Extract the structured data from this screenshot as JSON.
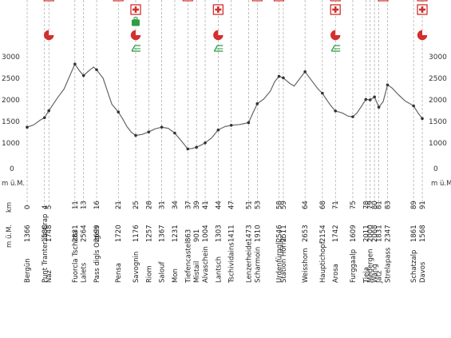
{
  "chart_data": {
    "type": "area",
    "title": "",
    "xlabel": "km",
    "ylabel": "m ü.M.",
    "units": {
      "elevation_left": "m ü.M.",
      "elevation_right": "m ü.M.",
      "km": "km"
    },
    "ylim": [
      0,
      3000
    ],
    "y_ticks": [
      1000,
      1500,
      2000,
      2500,
      3000
    ],
    "y_tick_labels": [
      "1000",
      "1500",
      "2000",
      "2500",
      "3000"
    ],
    "y_zero_label": "0",
    "xlim": [
      0,
      91
    ],
    "grid": false,
    "stops": [
      {
        "km": 0,
        "km_label": "0",
        "elev": 1366,
        "elev_label": "1366",
        "name": "Bergün"
      },
      {
        "km": 4,
        "km_label": "4",
        "elev": 1588,
        "elev_label": "1588",
        "name": "Punt Tranter ils Crap"
      },
      {
        "km": 5,
        "km_label": "5",
        "elev": 1748,
        "elev_label": "1748",
        "name": "Naz"
      },
      {
        "km": 11,
        "km_label": "11",
        "elev": 2831,
        "elev_label": "2831",
        "name": "Fuorcla Tschitta"
      },
      {
        "km": 13,
        "km_label": "13",
        "elev": 2564,
        "elev_label": "2564",
        "name": "Lalets"
      },
      {
        "km": 16,
        "km_label": "16",
        "elev": 2699,
        "elev_label": "2699",
        "name": "Pass digls Orgels"
      },
      {
        "km": 21,
        "km_label": "21",
        "elev": 1720,
        "elev_label": "1720",
        "name": "Pensa"
      },
      {
        "km": 25,
        "km_label": "25",
        "elev": 1176,
        "elev_label": "1176",
        "name": "Savognin"
      },
      {
        "km": 28,
        "km_label": "28",
        "elev": 1257,
        "elev_label": "1257",
        "name": "Riom"
      },
      {
        "km": 31,
        "km_label": "31",
        "elev": 1367,
        "elev_label": "1367",
        "name": "Salouf"
      },
      {
        "km": 34,
        "km_label": "34",
        "elev": 1231,
        "elev_label": "1231",
        "name": "Mon"
      },
      {
        "km": 37,
        "km_label": "37",
        "elev": 863,
        "elev_label": "863",
        "name": "Tiefencastel"
      },
      {
        "km": 39,
        "km_label": "39",
        "elev": 901,
        "elev_label": "901",
        "name": "Mistail"
      },
      {
        "km": 41,
        "km_label": "41",
        "elev": 1004,
        "elev_label": "1004",
        "name": "Alvaschein"
      },
      {
        "km": 44,
        "km_label": "44",
        "elev": 1303,
        "elev_label": "1303",
        "name": "Lantsch"
      },
      {
        "km": 47,
        "km_label": "47",
        "elev": 1411,
        "elev_label": "1411",
        "name": "Tschividains"
      },
      {
        "km": 51,
        "km_label": "51",
        "elev": 1473,
        "elev_label": "1473",
        "name": "Lenzerheide"
      },
      {
        "km": 53,
        "km_label": "53",
        "elev": 1910,
        "elev_label": "1910",
        "name": "Scharmoin"
      },
      {
        "km": 58,
        "km_label": "58",
        "elev": 2546,
        "elev_label": "2546",
        "name": "Urdenfürggli"
      },
      {
        "km": 59,
        "km_label": "59",
        "elev": 2511,
        "elev_label": "2511",
        "name": "Station Hörnli"
      },
      {
        "km": 64,
        "km_label": "64",
        "elev": 2653,
        "elev_label": "2653",
        "name": "Weisshorn"
      },
      {
        "km": 68,
        "km_label": "68",
        "elev": 2154,
        "elev_label": "2154",
        "name": "Hauptichopf"
      },
      {
        "km": 71,
        "km_label": "71",
        "elev": 1742,
        "elev_label": "1742",
        "name": "Arosa"
      },
      {
        "km": 75,
        "km_label": "75",
        "elev": 1609,
        "elev_label": "1609",
        "name": "Furggaalp"
      },
      {
        "km": 78,
        "km_label": "78",
        "elev": 2011,
        "elev_label": "2011",
        "name": "Tieja"
      },
      {
        "km": 79,
        "km_label": "79",
        "elev": 2000,
        "elev_label": "2000",
        "name": "Medergen"
      },
      {
        "km": 80,
        "km_label": "80",
        "elev": 2068,
        "elev_label": "2068",
        "name": "Wang"
      },
      {
        "km": 81,
        "km_label": "81",
        "elev": 1831,
        "elev_label": "1831",
        "name": "Jatz"
      },
      {
        "km": 83,
        "km_label": "83",
        "elev": 2347,
        "elev_label": "2347",
        "name": "Strelapass"
      },
      {
        "km": 89,
        "km_label": "89",
        "elev": 1861,
        "elev_label": "1861",
        "name": "Schatzalp"
      },
      {
        "km": 91,
        "km_label": "91",
        "elev": 1568,
        "elev_label": "1568",
        "name": "Davos"
      }
    ],
    "profile": [
      [
        0,
        1366
      ],
      [
        1.5,
        1420
      ],
      [
        3,
        1530
      ],
      [
        4,
        1588
      ],
      [
        5,
        1748
      ],
      [
        7,
        2050
      ],
      [
        8.5,
        2250
      ],
      [
        10,
        2600
      ],
      [
        11,
        2831
      ],
      [
        12,
        2680
      ],
      [
        13,
        2564
      ],
      [
        14.5,
        2700
      ],
      [
        15.3,
        2760
      ],
      [
        16,
        2699
      ],
      [
        17.5,
        2500
      ],
      [
        18.5,
        2200
      ],
      [
        19.5,
        1900
      ],
      [
        21,
        1720
      ],
      [
        22,
        1560
      ],
      [
        23,
        1380
      ],
      [
        24,
        1250
      ],
      [
        25,
        1176
      ],
      [
        26.5,
        1200
      ],
      [
        28,
        1257
      ],
      [
        29.5,
        1330
      ],
      [
        31,
        1367
      ],
      [
        32.5,
        1340
      ],
      [
        34,
        1231
      ],
      [
        35.5,
        1050
      ],
      [
        37,
        863
      ],
      [
        38,
        875
      ],
      [
        39,
        901
      ],
      [
        40,
        950
      ],
      [
        41,
        1004
      ],
      [
        42.5,
        1120
      ],
      [
        44,
        1303
      ],
      [
        45.5,
        1380
      ],
      [
        47,
        1411
      ],
      [
        49,
        1430
      ],
      [
        51,
        1473
      ],
      [
        52,
        1700
      ],
      [
        53,
        1910
      ],
      [
        54.5,
        2020
      ],
      [
        56,
        2200
      ],
      [
        57,
        2420
      ],
      [
        58,
        2546
      ],
      [
        59,
        2511
      ],
      [
        60.5,
        2380
      ],
      [
        61.5,
        2320
      ],
      [
        63,
        2520
      ],
      [
        64,
        2653
      ],
      [
        65.5,
        2450
      ],
      [
        67,
        2250
      ],
      [
        68,
        2154
      ],
      [
        69,
        2000
      ],
      [
        70,
        1860
      ],
      [
        71,
        1742
      ],
      [
        72.5,
        1700
      ],
      [
        74,
        1620
      ],
      [
        75,
        1609
      ],
      [
        76,
        1700
      ],
      [
        77,
        1850
      ],
      [
        78,
        2011
      ],
      [
        79,
        2000
      ],
      [
        80,
        2068
      ],
      [
        81,
        1831
      ],
      [
        82,
        1960
      ],
      [
        83,
        2347
      ],
      [
        84,
        2280
      ],
      [
        85.5,
        2120
      ],
      [
        87,
        1980
      ],
      [
        89,
        1861
      ],
      [
        90,
        1700
      ],
      [
        91,
        1568
      ]
    ],
    "symbols": [
      {
        "icon": "first-aid-icon",
        "km": 25
      },
      {
        "icon": "luggage-icon",
        "km": 25
      },
      {
        "icon": "railway-icon",
        "km": 25
      },
      {
        "icon": "first-aid-icon",
        "km": 44
      },
      {
        "icon": "railway-icon",
        "km": 44
      },
      {
        "icon": "first-aid-icon",
        "km": 71
      },
      {
        "icon": "railway-icon",
        "km": 71
      },
      {
        "icon": "first-aid-icon",
        "km": 91
      },
      {
        "icon": "clock-icon",
        "km": 5
      },
      {
        "icon": "clock-icon",
        "km": 25
      },
      {
        "icon": "clock-icon",
        "km": 44
      },
      {
        "icon": "clock-icon",
        "km": 71
      },
      {
        "icon": "clock-icon",
        "km": 91
      }
    ],
    "colors": {
      "line": "#666666",
      "guide": "#999999",
      "medical": "#d32f2f",
      "clock": "#d32f2f",
      "luggage": "#2e9e44",
      "rail": "#2e9e44"
    }
  }
}
